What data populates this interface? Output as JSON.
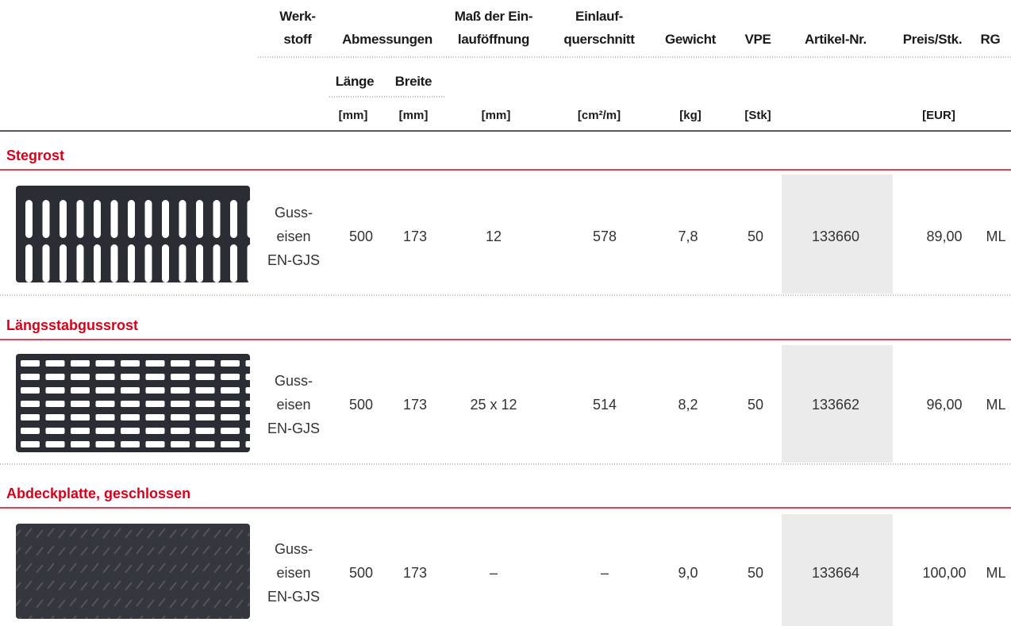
{
  "header": {
    "columns": [
      {
        "lines": [
          "Werk-",
          "stoff"
        ]
      },
      {
        "lines": [
          "Abmessungen"
        ]
      },
      {
        "lines": [
          "Maß der Ein-",
          "lauföffnung"
        ]
      },
      {
        "lines": [
          "Einlauf-",
          "querschnitt"
        ]
      },
      {
        "lines": [
          "Gewicht"
        ]
      },
      {
        "lines": [
          "VPE"
        ]
      },
      {
        "lines": [
          "Artikel-Nr."
        ]
      },
      {
        "lines": [
          "Preis/Stk."
        ]
      },
      {
        "lines": [
          "RG"
        ]
      }
    ],
    "subheaders": [
      "Länge",
      "Breite"
    ],
    "units": [
      "[mm]",
      "[mm]",
      "[mm]",
      "[cm²/m]",
      "[kg]",
      "[Stk]",
      "[EUR]"
    ]
  },
  "sections": [
    {
      "title": "Stegrost",
      "material": [
        "Guss-",
        "eisen",
        "EN-GJS"
      ],
      "cells": [
        "500",
        "173",
        "12",
        "578",
        "7,8",
        "50",
        "133660",
        "89,00",
        "ML"
      ]
    },
    {
      "title": "Längsstabgussrost",
      "material": [
        "Guss-",
        "eisen",
        "EN-GJS"
      ],
      "cells": [
        "500",
        "173",
        "25 x 12",
        "514",
        "8,2",
        "50",
        "133662",
        "96,00",
        "ML"
      ]
    },
    {
      "title": "Abdeckplatte, geschlossen",
      "material": [
        "Guss-",
        "eisen",
        "EN-GJS"
      ],
      "cells": [
        "500",
        "173",
        "–",
        "–",
        "9,0",
        "50",
        "133664",
        "100,00",
        "ML"
      ]
    }
  ]
}
